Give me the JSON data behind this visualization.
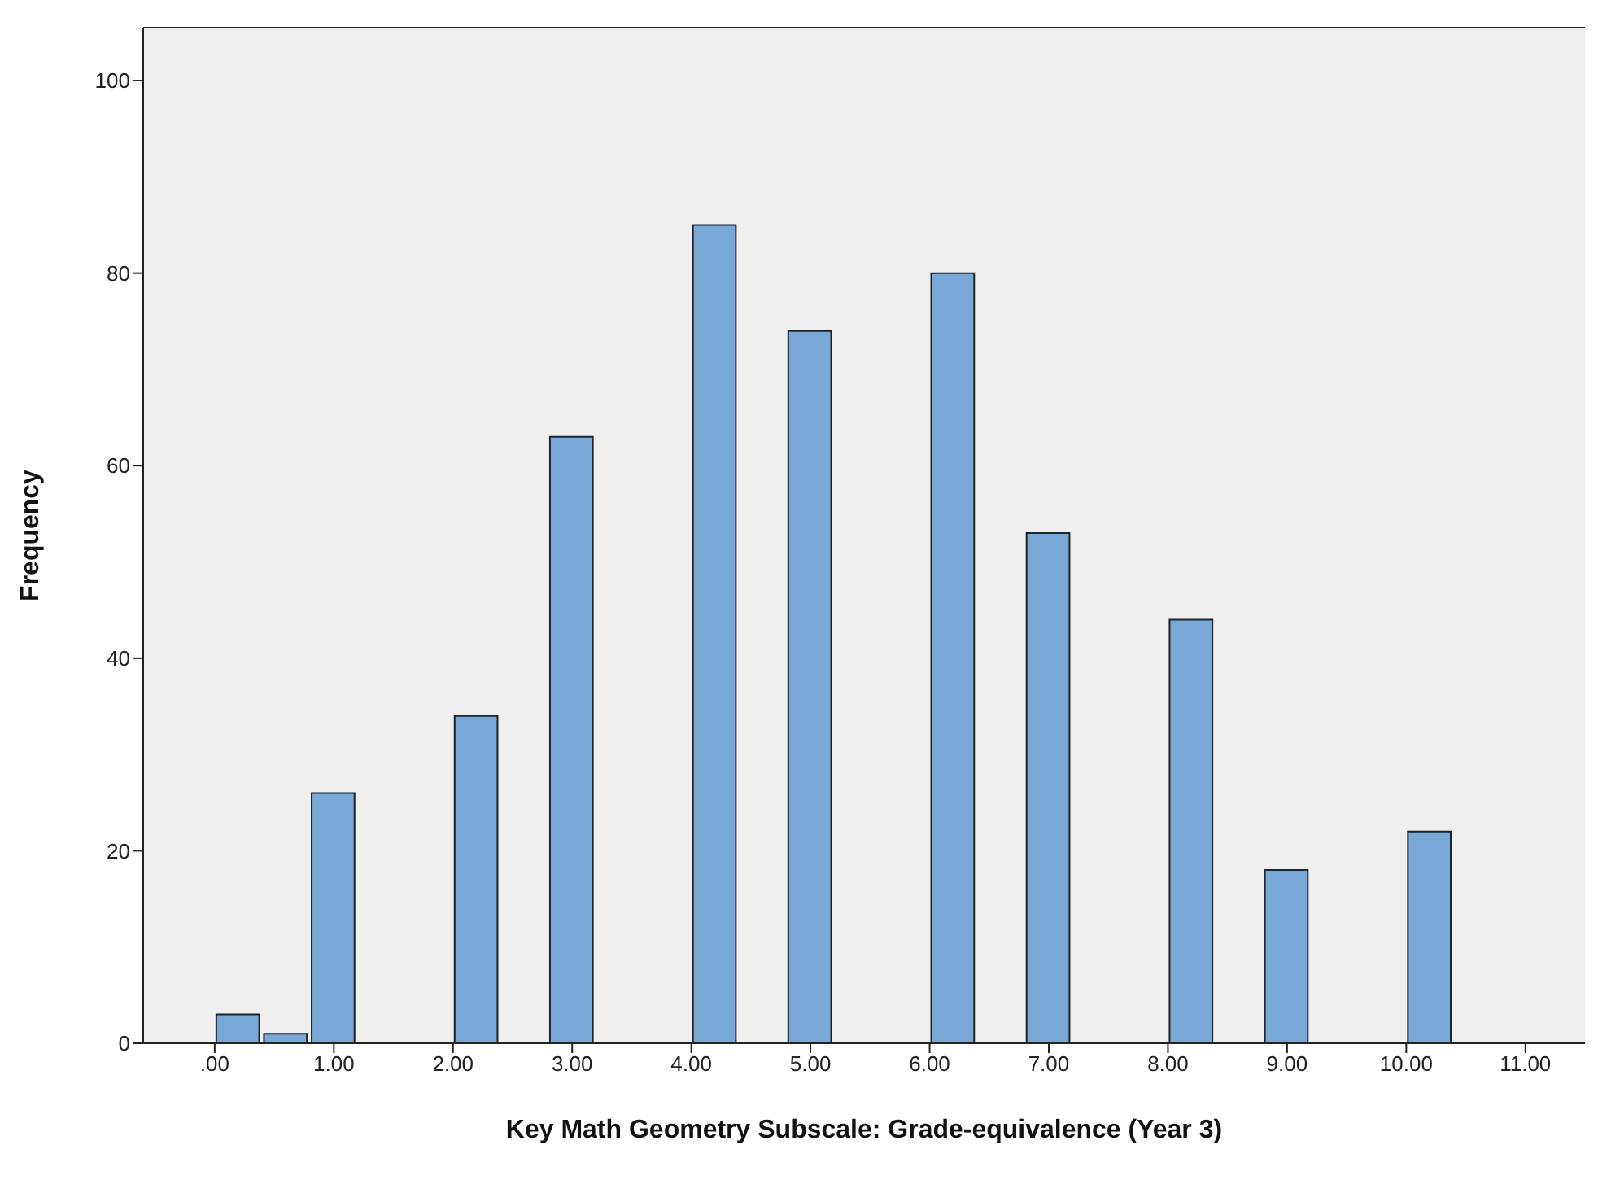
{
  "chart_data": {
    "type": "histogram",
    "xlabel": "Key Math Geometry Subscale:  Grade-equivalence (Year 3)",
    "ylabel": "Frequency",
    "bins": [
      0,
      0.4,
      0.8,
      1.2,
      1.6,
      2.0,
      2.4,
      2.8,
      3.2,
      3.6,
      4.0,
      4.4,
      4.8,
      5.2,
      5.6,
      6.0,
      6.4,
      6.8,
      7.2,
      7.6,
      8.0,
      8.4,
      8.8,
      9.2,
      9.6,
      10.0,
      10.4
    ],
    "values": [
      3,
      1,
      26,
      0,
      0,
      34,
      0,
      63,
      0,
      0,
      85,
      0,
      74,
      0,
      0,
      80,
      0,
      53,
      0,
      0,
      44,
      0,
      18,
      0,
      0,
      22
    ],
    "color": "#79a8d6",
    "xlim": [
      -0.6,
      11.5
    ],
    "xticks": [
      {
        "value": 0,
        "label": ".00"
      },
      {
        "value": 1,
        "label": "1.00"
      },
      {
        "value": 2,
        "label": "2.00"
      },
      {
        "value": 3,
        "label": "3.00"
      },
      {
        "value": 4,
        "label": "4.00"
      },
      {
        "value": 5,
        "label": "5.00"
      },
      {
        "value": 6,
        "label": "6.00"
      },
      {
        "value": 7,
        "label": "7.00"
      },
      {
        "value": 8,
        "label": "8.00"
      },
      {
        "value": 9,
        "label": "9.00"
      },
      {
        "value": 10,
        "label": "10.00"
      },
      {
        "value": 11,
        "label": "11.00"
      }
    ],
    "ylim": [
      0,
      105.5
    ],
    "yticks": [
      0,
      20,
      40,
      60,
      80,
      100
    ],
    "grid": false,
    "legend": false
  }
}
